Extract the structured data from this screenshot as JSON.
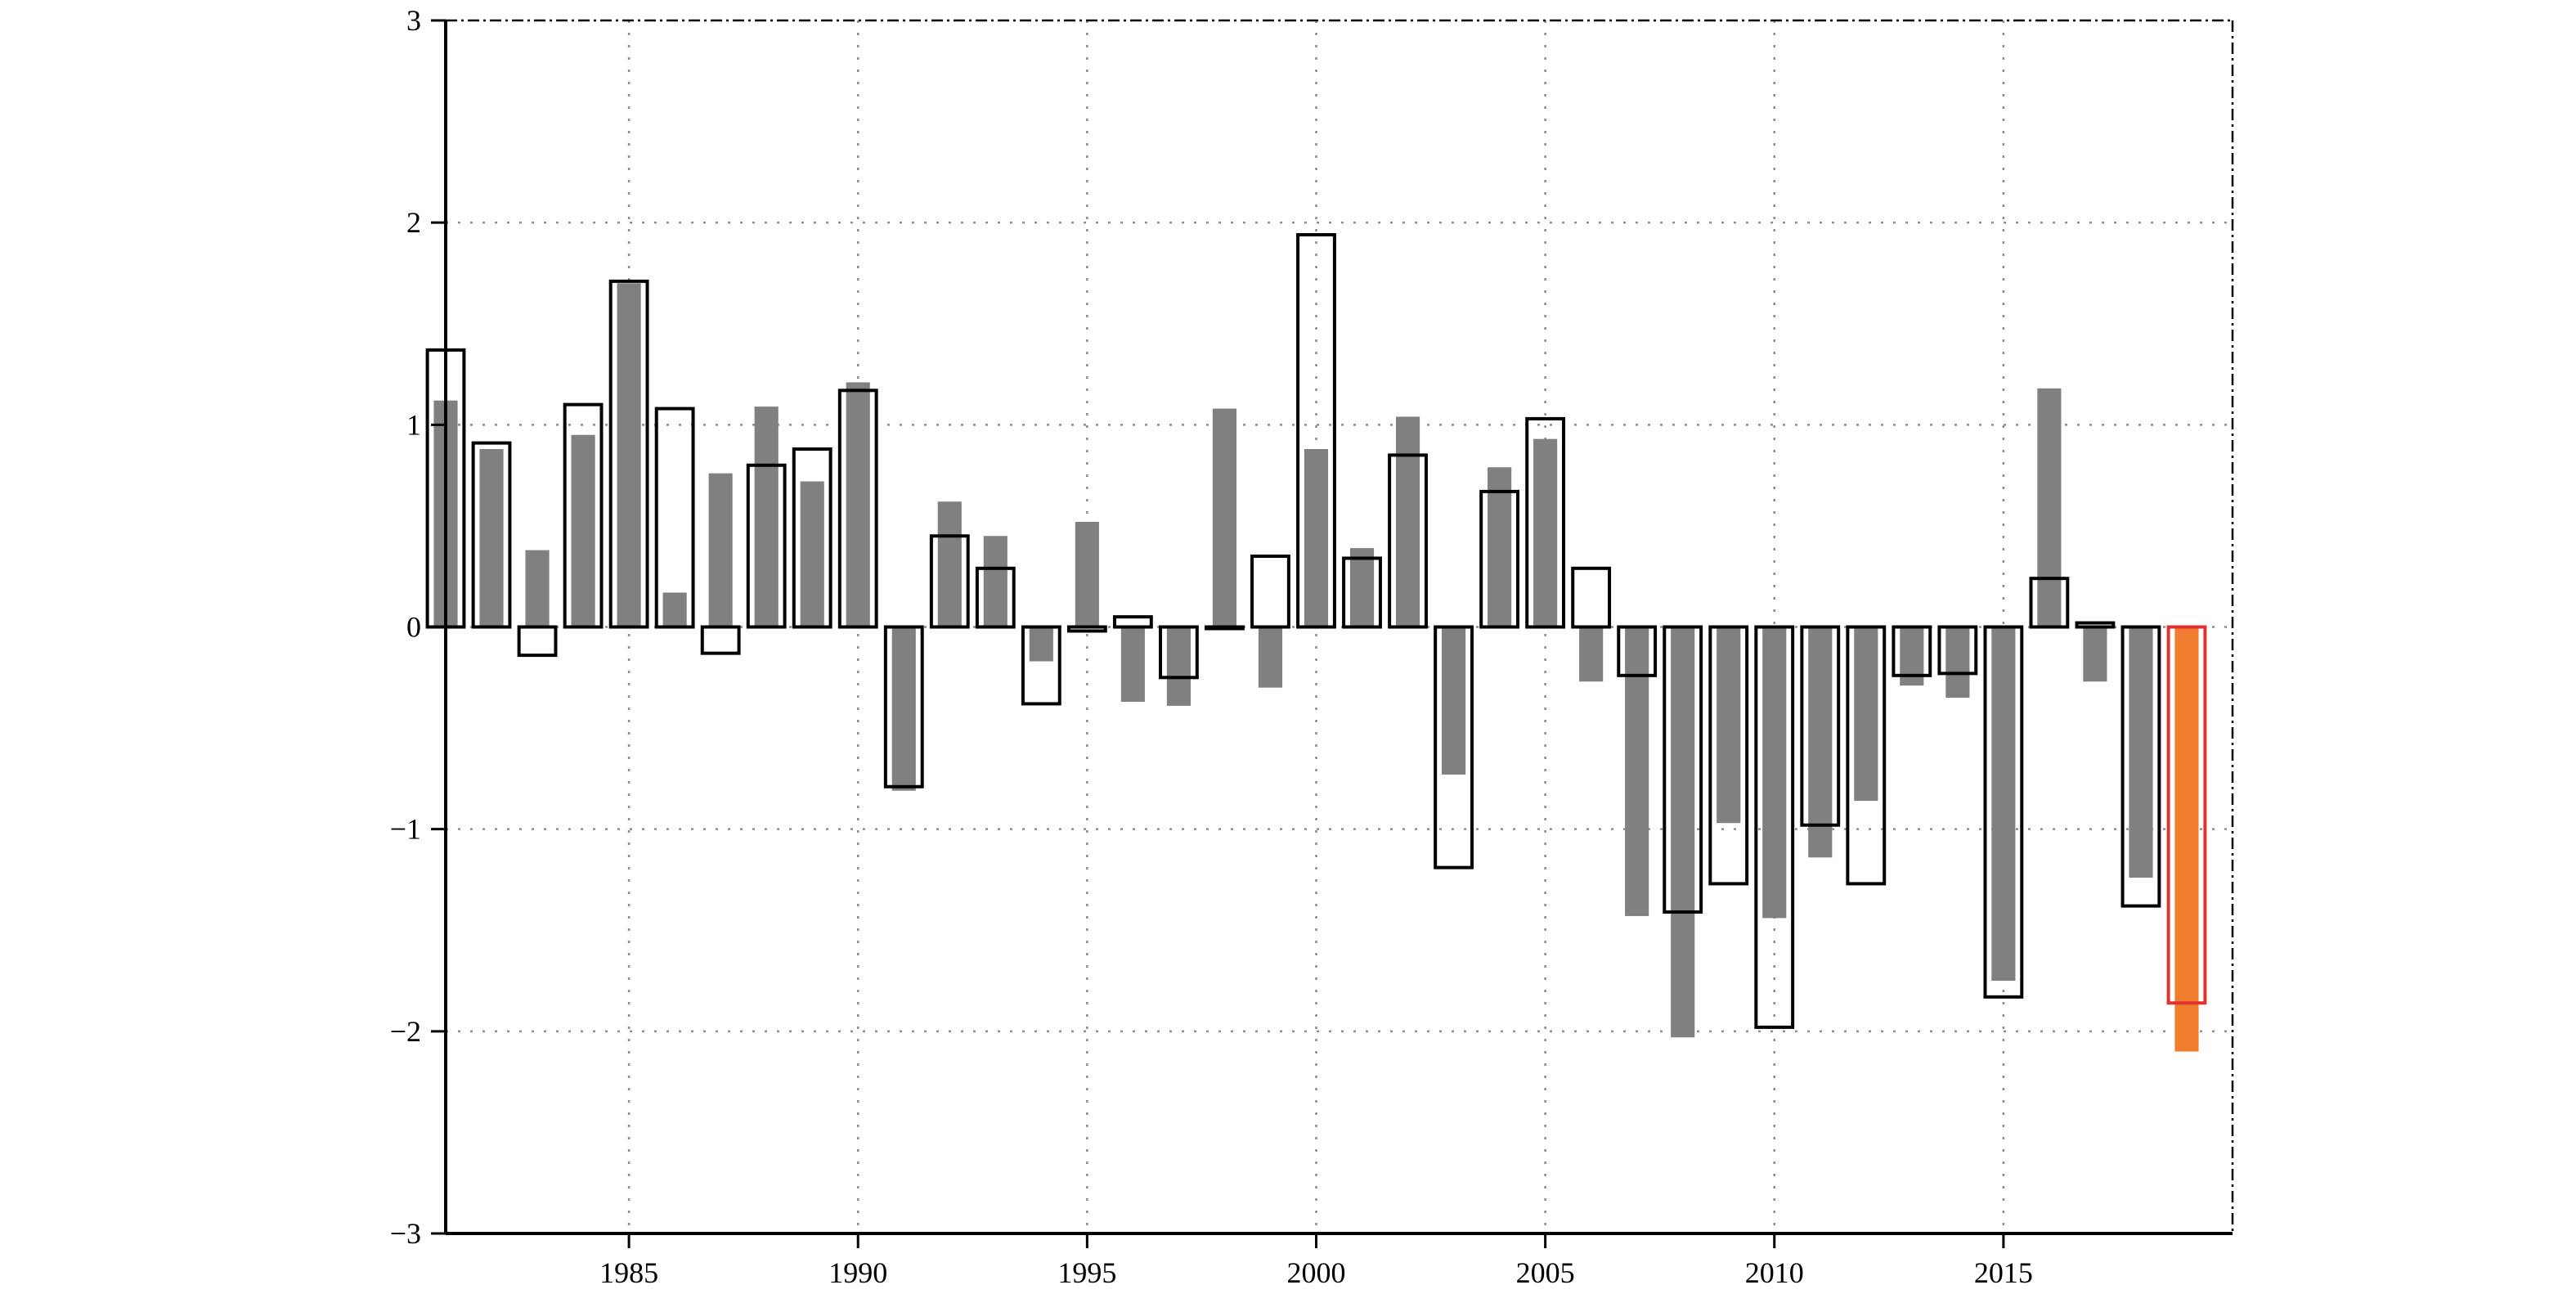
{
  "chart_data": {
    "type": "bar",
    "title": "",
    "xlabel": "",
    "ylabel": "",
    "xlim": [
      1981,
      2020
    ],
    "ylim": [
      -3,
      3
    ],
    "grid": true,
    "legend": "none",
    "x_ticks": [
      1985,
      1990,
      1995,
      2000,
      2005,
      2010,
      2015
    ],
    "y_ticks": [
      3,
      2,
      1,
      0,
      -1,
      -2,
      -3
    ],
    "x_tick_labels": [
      "1985",
      "1990",
      "1995",
      "2000",
      "2005",
      "2010",
      "2015"
    ],
    "y_tick_labels": [
      "3",
      "2",
      "1",
      "0",
      "−1",
      "−2",
      "−3"
    ],
    "x": [
      1981,
      1982,
      1983,
      1984,
      1985,
      1986,
      1987,
      1988,
      1989,
      1990,
      1991,
      1992,
      1993,
      1994,
      1995,
      1996,
      1997,
      1998,
      1999,
      2000,
      2001,
      2002,
      2003,
      2004,
      2005,
      2006,
      2007,
      2008,
      2009,
      2010,
      2011,
      2012,
      2013,
      2014,
      2015,
      2016,
      2017,
      2018,
      2019
    ],
    "series": [
      {
        "style": "filled",
        "color": "#808080",
        "highlight_color": "#f07d2e",
        "values": [
          1.12,
          0.88,
          0.38,
          0.95,
          1.7,
          0.17,
          0.76,
          1.09,
          0.72,
          1.21,
          -0.81,
          0.62,
          0.45,
          -0.17,
          0.52,
          -0.37,
          -0.39,
          1.08,
          -0.3,
          0.88,
          0.39,
          1.04,
          -0.73,
          0.79,
          0.93,
          -0.27,
          -1.43,
          -2.03,
          -0.97,
          -1.44,
          -1.14,
          -0.86,
          -0.29,
          -0.35,
          -1.75,
          1.18,
          -0.27,
          -1.24,
          -2.1
        ]
      },
      {
        "style": "outline",
        "color": "#000000",
        "highlight_color": "#e03030",
        "values": [
          1.37,
          0.91,
          -0.14,
          1.1,
          1.71,
          1.08,
          -0.13,
          0.8,
          0.88,
          1.17,
          -0.79,
          0.45,
          0.29,
          -0.38,
          -0.02,
          0.05,
          -0.25,
          0.0,
          0.35,
          1.94,
          0.34,
          0.85,
          -1.19,
          0.67,
          1.03,
          0.29,
          -0.24,
          -1.41,
          -1.27,
          -1.98,
          -0.98,
          -1.27,
          -0.24,
          -0.23,
          -1.83,
          0.24,
          0.02,
          -1.38,
          -1.86
        ]
      }
    ],
    "highlight_x": 2019
  }
}
